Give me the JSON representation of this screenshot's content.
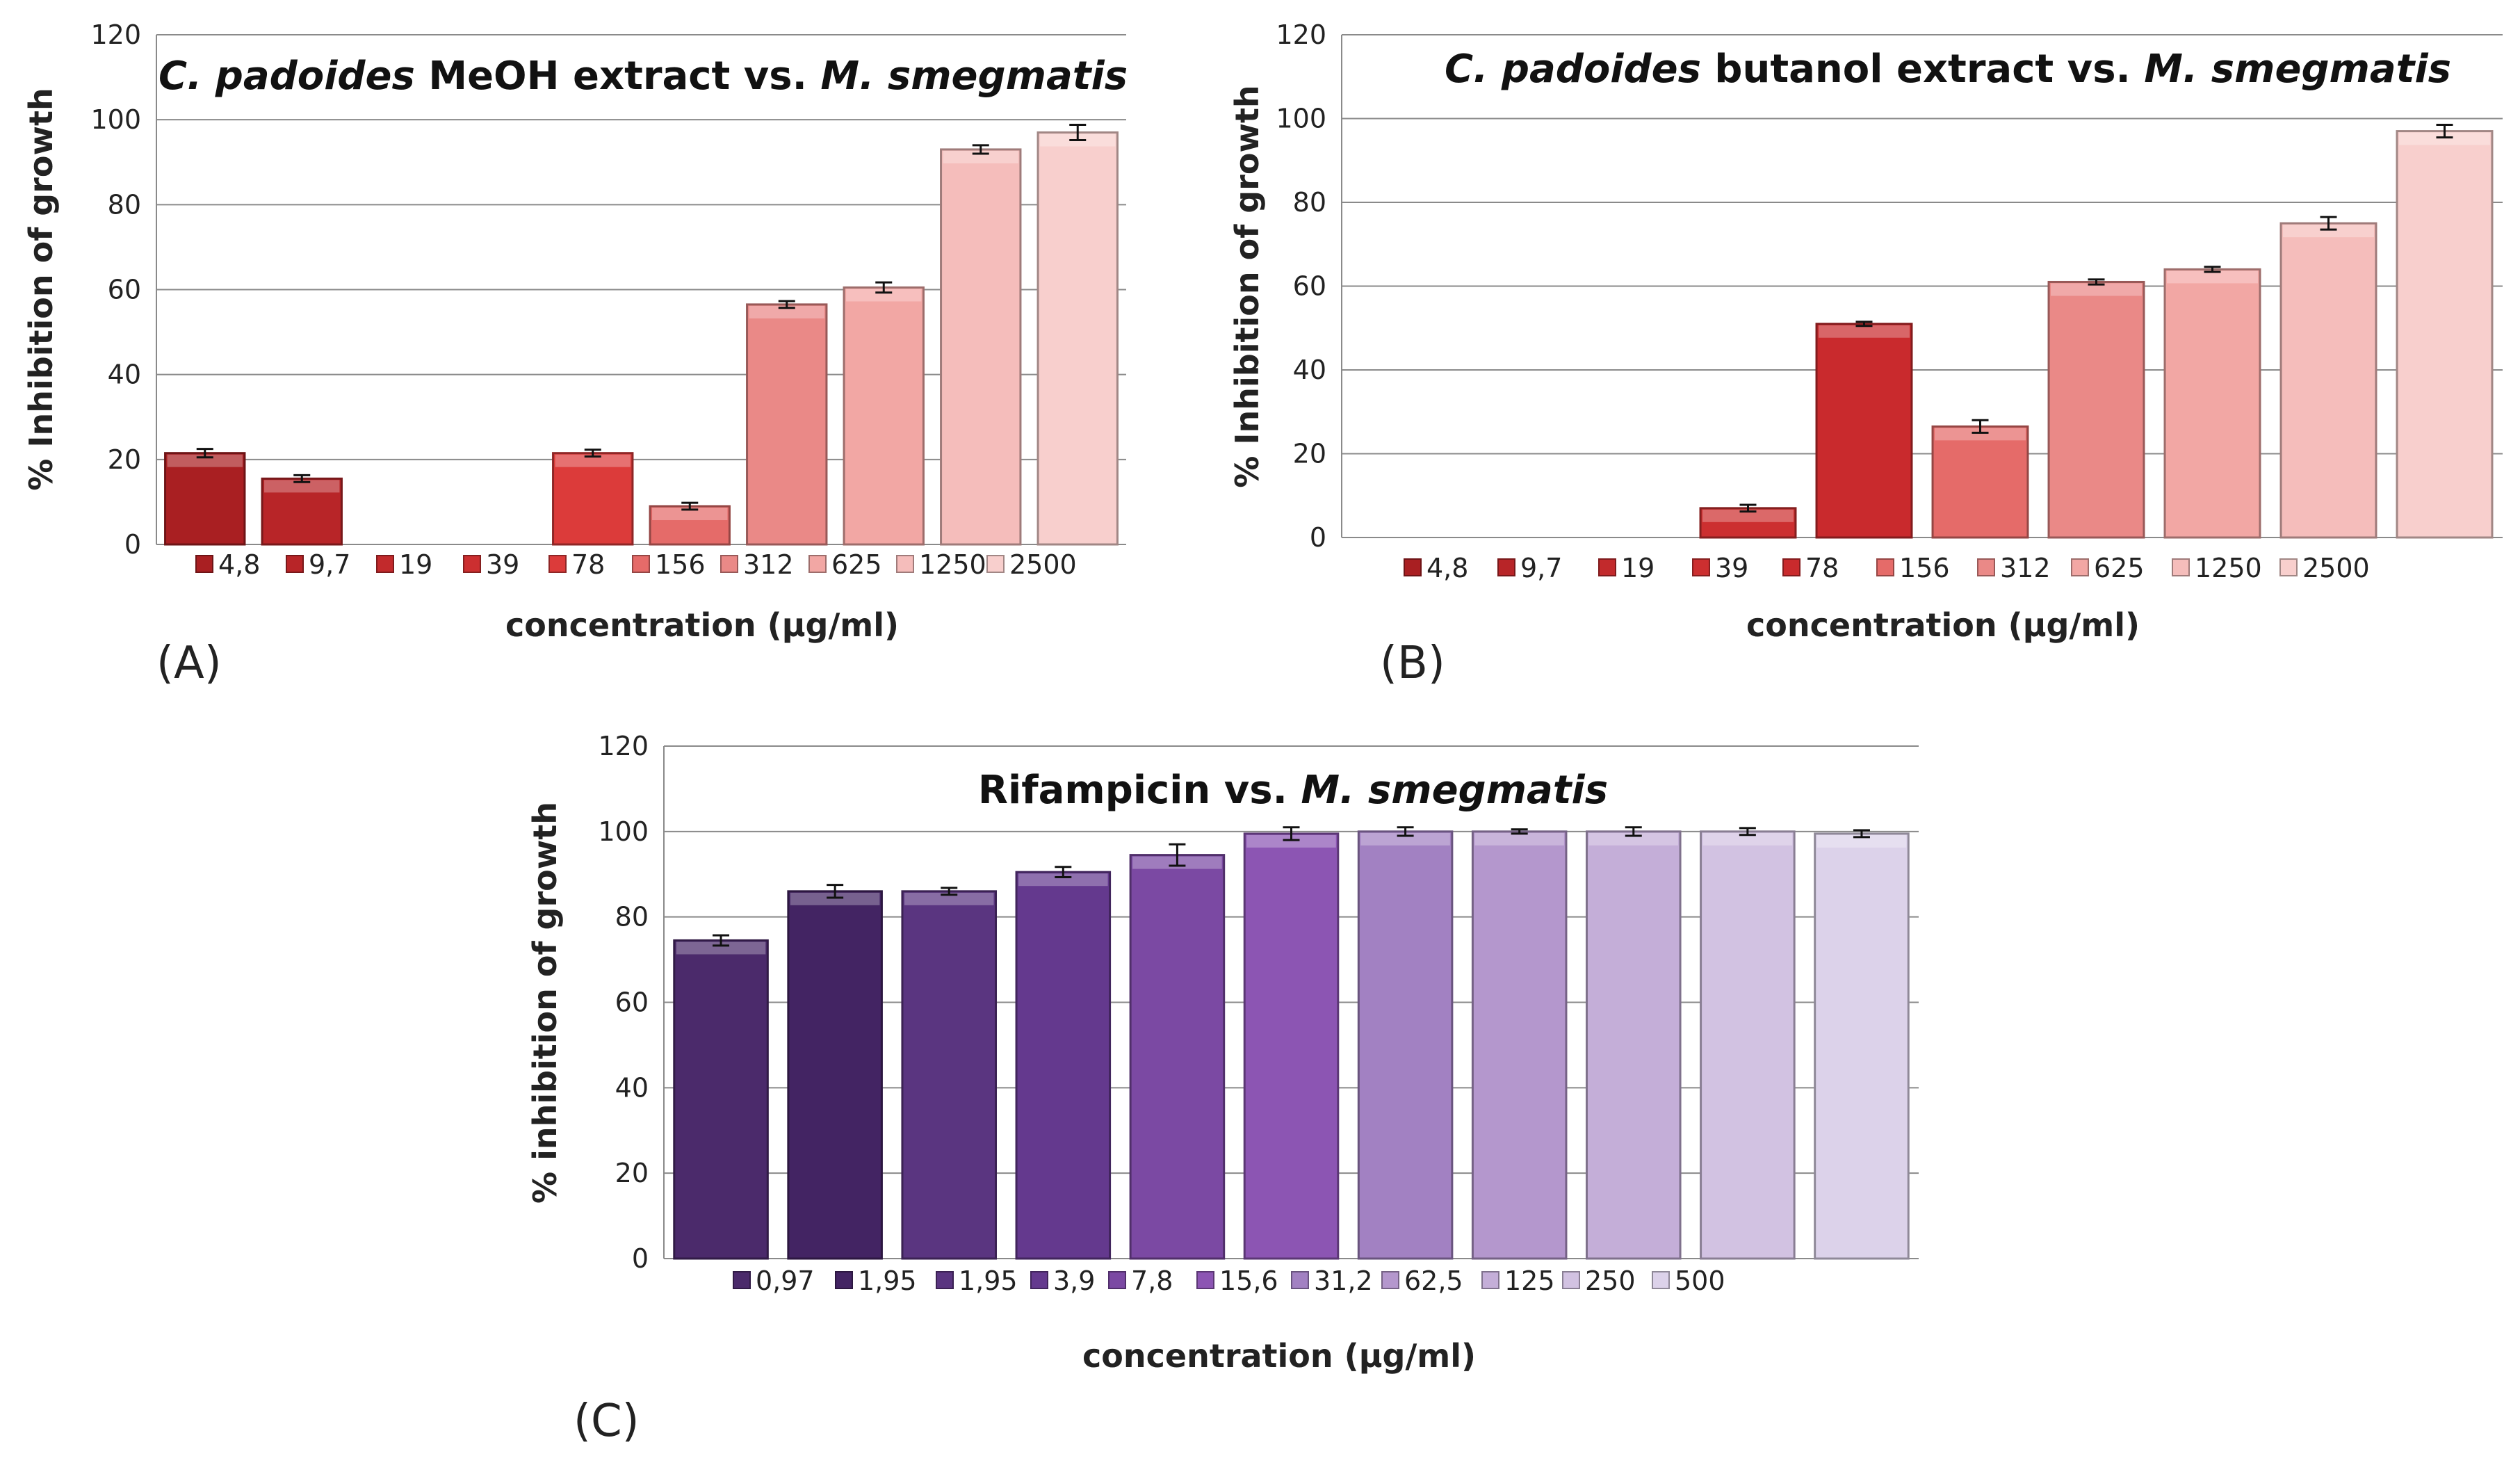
{
  "chart_data": [
    {
      "type": "bar",
      "panel_label": "(A)",
      "title_parts": [
        {
          "text": "C. padoides",
          "italic": true
        },
        {
          "text": " MeOH extract vs. ",
          "italic": false
        },
        {
          "text": "M. smegmatis",
          "italic": true
        }
      ],
      "xlabel": "concentration (µg/ml)",
      "ylabel": "% Inhibition of growth",
      "ylim": [
        0,
        120
      ],
      "yticks": [
        "0",
        "20",
        "40",
        "60",
        "80",
        "100",
        "120"
      ],
      "grid": true,
      "categories": [
        "4,8",
        "9,7",
        "19",
        "39",
        "78",
        "156",
        "312",
        "625",
        "1250",
        "2500"
      ],
      "values": [
        21.5,
        15.5,
        0,
        0,
        21.5,
        9,
        56.5,
        60.5,
        93,
        97
      ],
      "errors": [
        1,
        0.8,
        0,
        0,
        0.8,
        0.8,
        0.8,
        1.2,
        1,
        1.8
      ],
      "colors": [
        "#a91f22",
        "#b82528",
        "#c22a2c",
        "#cc2f30",
        "#dc3b3a",
        "#e56b69",
        "#ea8987",
        "#f2a7a4",
        "#f5bdbb",
        "#f8cfcd"
      ]
    },
    {
      "type": "bar",
      "panel_label": "(B)",
      "title_parts": [
        {
          "text": "C. padoides",
          "italic": true
        },
        {
          "text": " butanol extract vs. ",
          "italic": false
        },
        {
          "text": "M. smegmatis",
          "italic": true
        }
      ],
      "xlabel": "concentration (µg/ml)",
      "ylabel": "% Inhibition of growth",
      "ylim": [
        0,
        120
      ],
      "yticks": [
        "0",
        "20",
        "40",
        "60",
        "80",
        "100",
        "120"
      ],
      "grid": true,
      "categories": [
        "4,8",
        "9,7",
        "19",
        "39",
        "78",
        "156",
        "312",
        "625",
        "1250",
        "2500"
      ],
      "values": [
        0,
        0,
        0,
        7,
        51,
        26.5,
        61,
        64,
        75,
        97
      ],
      "errors": [
        0,
        0,
        0,
        0.8,
        0.5,
        1.5,
        0.6,
        0.6,
        1.5,
        1.5
      ],
      "colors": [
        "#a91f22",
        "#b82528",
        "#c22a2c",
        "#cc2f30",
        "#c92a2d",
        "#e56b69",
        "#ea8987",
        "#f2a7a4",
        "#f5bdbb",
        "#f8cfcd"
      ]
    },
    {
      "type": "bar",
      "panel_label": "(C)",
      "title_parts": [
        {
          "text": "Rifampicin vs. ",
          "italic": false
        },
        {
          "text": "M. smegmatis",
          "italic": true
        }
      ],
      "xlabel": "concentration (µg/ml)",
      "ylabel": "% inhibition of growth",
      "ylim": [
        0,
        120
      ],
      "yticks": [
        "0",
        "20",
        "40",
        "60",
        "80",
        "100",
        "120"
      ],
      "grid": true,
      "categories": [
        "0,97",
        "1,95",
        "1,95",
        "3,9",
        "7,8",
        "15,6",
        "31,2",
        "62,5",
        "125",
        "250",
        "500"
      ],
      "values": [
        74.5,
        86,
        86,
        90.5,
        94.5,
        99.5,
        100,
        100,
        100,
        100,
        99.5
      ],
      "errors": [
        1.2,
        1.5,
        0.8,
        1.2,
        2.5,
        1.5,
        1,
        0.5,
        1,
        0.8,
        0.8
      ],
      "colors": [
        "#4b2a6b",
        "#432463",
        "#5a3580",
        "#64398e",
        "#7b49a3",
        "#8c55b3",
        "#a281c2",
        "#b497cd",
        "#c4aed8",
        "#d2c2e2",
        "#dcd2ea"
      ]
    }
  ]
}
